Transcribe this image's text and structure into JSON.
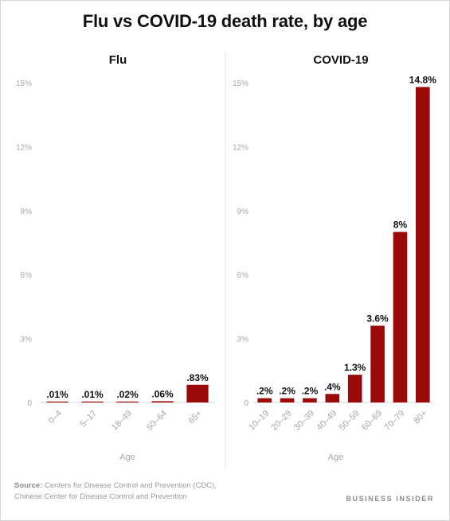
{
  "title": "Flu vs COVID-19 death rate, by age",
  "colors": {
    "bar": "#9b0a0a",
    "text": "#111111",
    "axis": "#b5b5b5",
    "tick": "#a8a8a8"
  },
  "chart_data": [
    {
      "type": "bar",
      "title": "Flu",
      "xlabel": "Age",
      "ylabel": "",
      "ylim": [
        0,
        15
      ],
      "yticks": [
        0,
        3,
        6,
        9,
        12,
        15
      ],
      "ytick_labels": [
        "0",
        "3%",
        "6%",
        "9%",
        "12%",
        "15%"
      ],
      "categories": [
        "0–4",
        "5–17",
        "18–49",
        "50–64",
        "65+"
      ],
      "values": [
        0.01,
        0.01,
        0.02,
        0.06,
        0.83
      ],
      "data_labels": [
        ".01%",
        ".01%",
        ".02%",
        ".06%",
        ".83%"
      ],
      "grid": false
    },
    {
      "type": "bar",
      "title": "COVID-19",
      "xlabel": "Age",
      "ylabel": "",
      "ylim": [
        0,
        15
      ],
      "yticks": [
        0,
        3,
        6,
        9,
        12,
        15
      ],
      "ytick_labels": [
        "0",
        "3%",
        "6%",
        "9%",
        "12%",
        "15%"
      ],
      "categories": [
        "10–19",
        "20–29",
        "30–39",
        "40–49",
        "50–59",
        "60–69",
        "70–79",
        "80+"
      ],
      "values": [
        0.2,
        0.2,
        0.2,
        0.4,
        1.3,
        3.6,
        8,
        14.8
      ],
      "data_labels": [
        ".2%",
        ".2%",
        ".2%",
        ".4%",
        "1.3%",
        "3.6%",
        "8%",
        "14.8%"
      ],
      "grid": false
    }
  ],
  "footer": {
    "source_label": "Source:",
    "source_line1": " Centers for Disease Control and Prevention (CDC),",
    "source_line2": "Chinese Center for Disease Control and Prevention",
    "brand": "BUSINESS INSIDER"
  }
}
